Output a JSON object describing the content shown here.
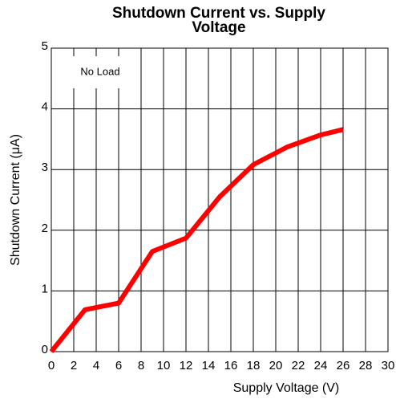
{
  "chart_data": {
    "type": "line",
    "title": "Shutdown Current vs. Supply Voltage",
    "xlabel": "Supply Voltage (V)",
    "ylabel": "Shutdown Current (μA)",
    "annotation": "No Load",
    "x": [
      0,
      3,
      6,
      9,
      12,
      15,
      18,
      21,
      24,
      26
    ],
    "series": [
      {
        "name": "Shutdown Current",
        "color": "#ff0000",
        "values": [
          0,
          0.69,
          0.8,
          1.65,
          1.87,
          2.55,
          3.08,
          3.37,
          3.57,
          3.66
        ]
      }
    ],
    "xlim": [
      0,
      30
    ],
    "xticks": [
      0,
      2,
      4,
      6,
      8,
      10,
      12,
      14,
      16,
      18,
      20,
      22,
      24,
      26,
      28,
      30
    ],
    "ylim": [
      0,
      5
    ],
    "yticks": [
      0,
      1,
      2,
      3,
      4,
      5
    ],
    "grid": true
  }
}
